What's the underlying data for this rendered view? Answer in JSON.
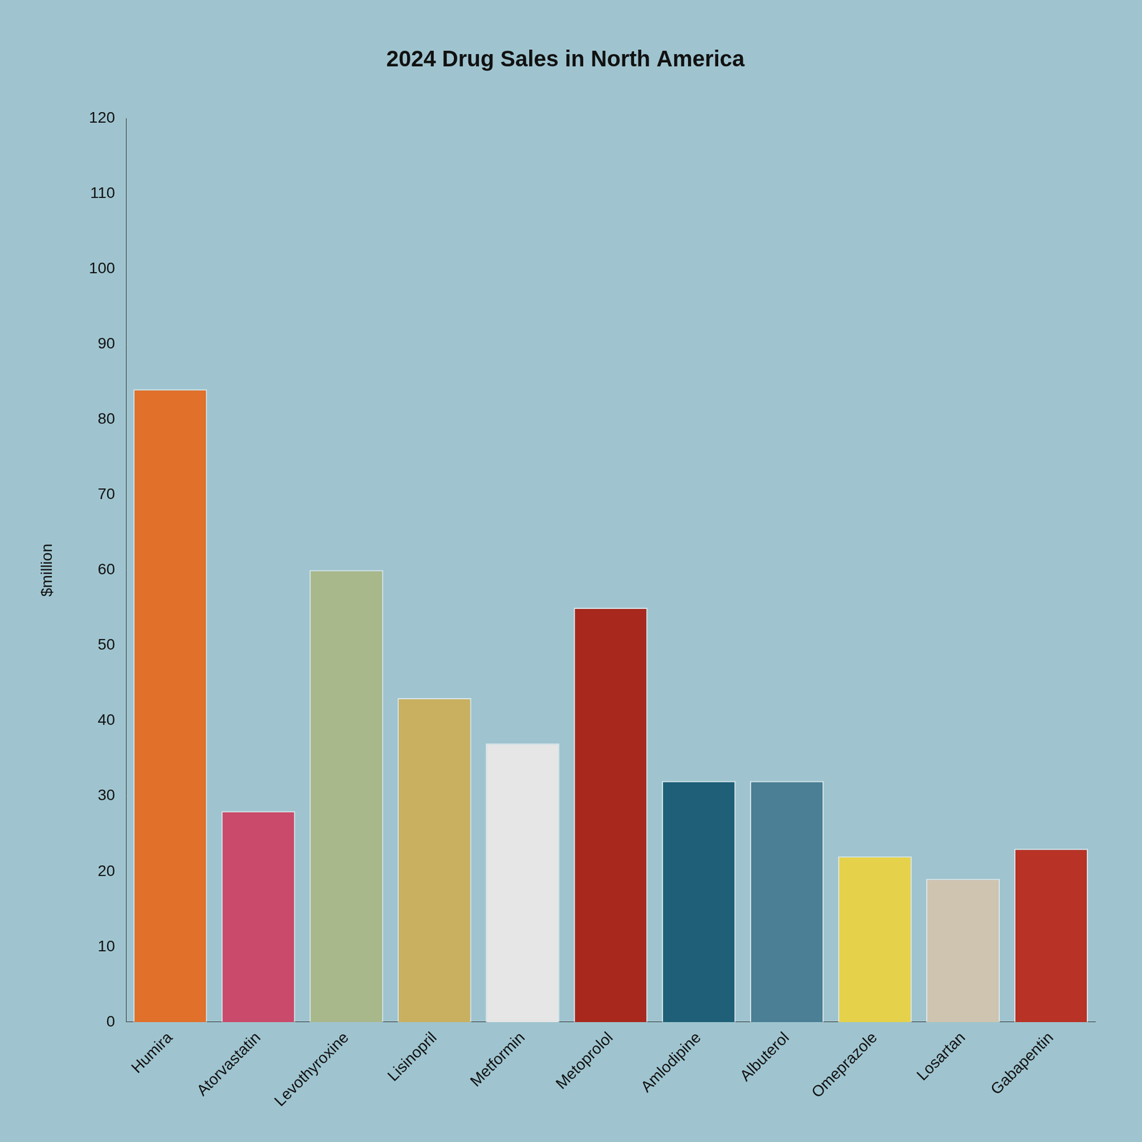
{
  "chart_data": {
    "type": "bar",
    "title": "2024 Drug Sales in North America",
    "y_label": "$million",
    "categories": [
      "Humira",
      "Atorvastatin",
      "Levothyroxine",
      "Lisinopril",
      "Metformin",
      "Metoprolol",
      "Amlodipine",
      "Albuterol",
      "Omeprazole",
      "Losartan",
      "Gabapentin"
    ],
    "values": [
      84,
      28,
      60,
      43,
      37,
      55,
      32,
      32,
      22,
      19,
      23
    ],
    "colors": [
      "#e0702a",
      "#c94a6a",
      "#a9b88a",
      "#c9b060",
      "#e6e6e6",
      "#a8281e",
      "#1f5f78",
      "#4a7f95",
      "#e6d24a",
      "#cfc4b0",
      "#b83226"
    ],
    "ylim": [
      0,
      120
    ],
    "yticks": [
      0,
      10,
      20,
      30,
      40,
      50,
      60,
      70,
      80,
      90,
      100,
      110,
      120
    ],
    "grid": false
  }
}
